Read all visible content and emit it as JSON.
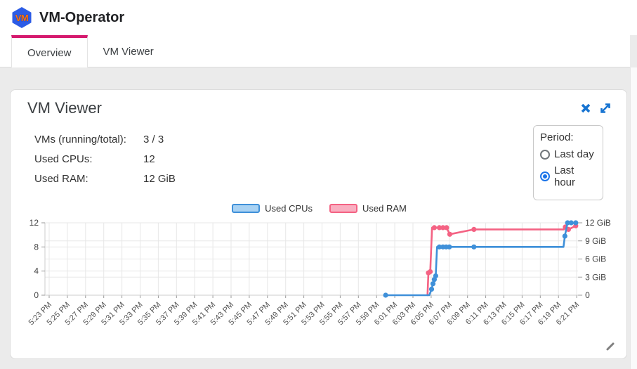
{
  "header": {
    "app_title": "VM-Operator",
    "logo_text": "VM"
  },
  "tabs": [
    {
      "label": "Overview",
      "active": true
    },
    {
      "label": "VM Viewer",
      "active": false
    }
  ],
  "card": {
    "title": "VM Viewer",
    "stats": [
      {
        "label": "VMs (running/total):",
        "value": "3 / 3"
      },
      {
        "label": "Used CPUs:",
        "value": "12"
      },
      {
        "label": "Used RAM:",
        "value": "12 GiB"
      }
    ],
    "period": {
      "label": "Period:",
      "options": [
        {
          "label": "Last day",
          "selected": false
        },
        {
          "label": "Last hour",
          "selected": true
        }
      ]
    }
  },
  "colors": {
    "accent_magenta": "#d5196e",
    "icon_blue": "#1673d1",
    "radio_blue": "#1a73e8",
    "cpu_line": "#3f90d9",
    "cpu_fill": "#a9d2f3",
    "ram_line": "#f46283",
    "ram_fill": "#f9afc1",
    "grid": "#e7e7e7",
    "axis": "#cccccc",
    "tick": "#999999",
    "axis_text": "#555555"
  },
  "chart_data": {
    "type": "line",
    "title": "",
    "legend_position": "top",
    "grid_on": true,
    "x_axis": {
      "unit": "time",
      "tick_interval_minutes": 2,
      "labels": [
        "5:23 PM",
        "5:25 PM",
        "5:27 PM",
        "5:29 PM",
        "5:31 PM",
        "5:33 PM",
        "5:35 PM",
        "5:37 PM",
        "5:39 PM",
        "5:41 PM",
        "5:43 PM",
        "5:45 PM",
        "5:47 PM",
        "5:49 PM",
        "5:51 PM",
        "5:53 PM",
        "5:55 PM",
        "5:57 PM",
        "5:59 PM",
        "6:01 PM",
        "6:03 PM",
        "6:05 PM",
        "6:07 PM",
        "6:09 PM",
        "6:11 PM",
        "6:13 PM",
        "6:15 PM",
        "6:17 PM",
        "6:19 PM",
        "6:21 PM"
      ]
    },
    "ylim": [
      0,
      12
    ],
    "left_axis": {
      "title": "CPUs",
      "ticks": [
        0,
        4,
        8,
        12
      ]
    },
    "right_axis": {
      "title": "RAM",
      "values": [
        0,
        3,
        6,
        9,
        12
      ],
      "labels": [
        "0",
        "3 GiB",
        "6 GiB",
        "9 GiB",
        "12 GiB"
      ]
    },
    "grid_values": [
      0,
      3,
      4,
      6,
      8,
      9,
      12
    ],
    "series": [
      {
        "name": "Used RAM",
        "axis": "right",
        "unit": "GiB",
        "points": [
          [
            41.6,
            0,
            0
          ],
          [
            41.7,
            3.7,
            1
          ],
          [
            41.9,
            3.9,
            1
          ],
          [
            42.1,
            11.2,
            0
          ],
          [
            42.35,
            11.2,
            1
          ],
          [
            42.9,
            11.2,
            1
          ],
          [
            43.3,
            11.2,
            1
          ],
          [
            43.7,
            11.2,
            1
          ],
          [
            44.05,
            10.1,
            1
          ],
          [
            46.7,
            10.9,
            1
          ],
          [
            56.6,
            10.9,
            0
          ],
          [
            56.75,
            11.3,
            1
          ],
          [
            57.1,
            10.9,
            1
          ],
          [
            57.9,
            11.5,
            1
          ]
        ]
      },
      {
        "name": "Used CPUs",
        "axis": "left",
        "unit": "CPUs",
        "points": [
          [
            37.0,
            0,
            1
          ],
          [
            41.8,
            0,
            0
          ],
          [
            42.05,
            1,
            1
          ],
          [
            42.2,
            1.9,
            1
          ],
          [
            42.35,
            2.6,
            1
          ],
          [
            42.5,
            3.2,
            1
          ],
          [
            42.65,
            8,
            0
          ],
          [
            42.9,
            8,
            1
          ],
          [
            43.3,
            8,
            1
          ],
          [
            43.65,
            8,
            1
          ],
          [
            44.0,
            8,
            1
          ],
          [
            46.7,
            8,
            1
          ],
          [
            56.55,
            8,
            0
          ],
          [
            56.7,
            9.8,
            1
          ],
          [
            57.0,
            12,
            1
          ],
          [
            57.4,
            12,
            1
          ],
          [
            57.9,
            12,
            1
          ]
        ]
      }
    ],
    "note": "points are [minutes_after_5:23PM, value, has_marker]"
  }
}
